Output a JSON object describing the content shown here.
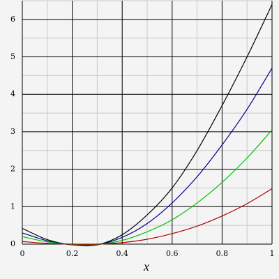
{
  "chart_data": {
    "type": "line",
    "x_label": "x",
    "x": [
      0,
      0.1,
      0.2,
      0.3,
      0.4,
      0.5,
      0.6,
      0.7,
      0.8,
      0.9,
      1
    ],
    "series": [
      {
        "color": "#000000",
        "values": [
          0.42,
          0.12,
          -0.02,
          -0.02,
          0.25,
          0.78,
          1.5,
          2.5,
          3.7,
          5.0,
          6.4
        ]
      },
      {
        "color": "#00008b",
        "values": [
          0.3,
          0.09,
          -0.02,
          -0.02,
          0.18,
          0.55,
          1.1,
          1.8,
          2.65,
          3.6,
          4.7
        ]
      },
      {
        "color": "#00c000",
        "values": [
          0.2,
          0.06,
          -0.01,
          -0.01,
          0.1,
          0.33,
          0.65,
          1.1,
          1.65,
          2.3,
          3.05
        ]
      },
      {
        "color": "#b00000",
        "values": [
          0.07,
          0.02,
          0,
          0,
          0.04,
          0.13,
          0.28,
          0.48,
          0.75,
          1.08,
          1.48
        ]
      }
    ],
    "xlim": [
      0,
      1
    ],
    "ylim": [
      0,
      6.5
    ],
    "xticks": [
      0,
      0.2,
      0.4,
      0.6,
      0.8,
      1
    ],
    "yticks": [
      0,
      1,
      2,
      3,
      4,
      5,
      6
    ],
    "x_minor_ticks": [
      0.1,
      0.3,
      0.5,
      0.7,
      0.9
    ],
    "y_minor_ticks": [
      0.5,
      1.5,
      2.5,
      3.5,
      4.5,
      5.5,
      6.5
    ],
    "grid": true
  }
}
